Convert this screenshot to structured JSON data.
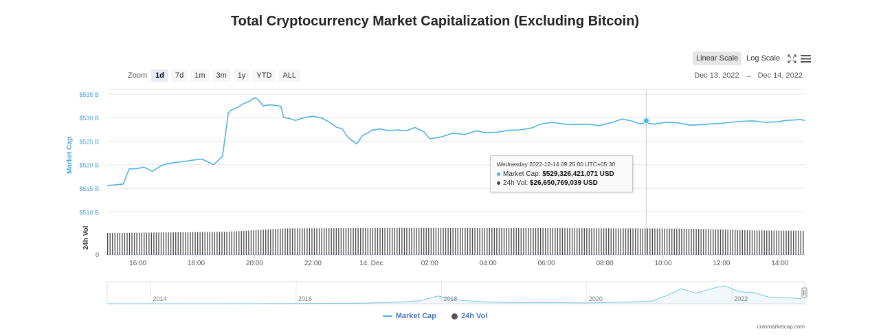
{
  "title": "Total Cryptocurrency Market Capitalization (Excluding Bitcoin)",
  "zoom": {
    "label": "Zoom",
    "options": [
      "1d",
      "7d",
      "1m",
      "3m",
      "1y",
      "YTD",
      "ALL"
    ],
    "active": "1d"
  },
  "scale": {
    "linear": "Linear Scale",
    "log": "Log Scale",
    "active": "Linear Scale"
  },
  "date_range": {
    "from": "Dec 13, 2022",
    "arrow": "→",
    "to": "Dec 14, 2022"
  },
  "tooltip": {
    "header": "Wednesday 2022-12-14 09:25:00 UTC+05:30",
    "market_cap_label": "Market Cap:",
    "market_cap_value": "$529,326,421,071 USD",
    "vol_label": "24h Vol:",
    "vol_value": "$26,650,769,039 USD"
  },
  "legend": {
    "market_cap": "Market Cap",
    "vol": "24h Vol"
  },
  "credit": "coinmarketcap.com",
  "colors": {
    "market_cap": "#4fb3e0",
    "vol": "#444444",
    "axis_blue": "#4fa5d8"
  },
  "chart_data": {
    "type": "line",
    "title": "Total Cryptocurrency Market Capitalization (Excluding Bitcoin)",
    "ylabel": "Market Cap",
    "y2label": "24h Vol",
    "ylim": [
      508,
      536
    ],
    "yticks": [
      "$535 B",
      "$530 B",
      "$525 B",
      "$520 B",
      "$515 B",
      "$510 B"
    ],
    "ytick_values": [
      535,
      530,
      525,
      520,
      515,
      510
    ],
    "vol_tick": "0",
    "xticks": [
      "16:00",
      "18:00",
      "20:00",
      "22:00",
      "14. Dec",
      "02:00",
      "04:00",
      "06:00",
      "08:00",
      "10:00",
      "12:00",
      "14:00"
    ],
    "xtick_hours": [
      16,
      18,
      20,
      22,
      24,
      26,
      28,
      30,
      32,
      34,
      36,
      38
    ],
    "x_range_hours": [
      14.95,
      38.85
    ],
    "series": [
      {
        "name": "Market Cap",
        "unit": "USD billions",
        "x_hours": [
          14.95,
          15.2,
          15.5,
          15.7,
          16.0,
          16.2,
          16.5,
          16.8,
          17.0,
          17.3,
          17.6,
          17.9,
          18.2,
          18.6,
          18.9,
          19.1,
          19.2,
          19.4,
          19.6,
          19.8,
          19.9,
          20.0,
          20.1,
          20.3,
          20.5,
          20.7,
          20.9,
          21.0,
          21.2,
          21.4,
          21.6,
          21.8,
          22.0,
          22.3,
          22.6,
          22.8,
          23.0,
          23.2,
          23.5,
          23.7,
          23.9,
          24.0,
          24.3,
          24.6,
          24.9,
          25.2,
          25.5,
          25.8,
          26.0,
          26.4,
          26.8,
          27.2,
          27.6,
          27.9,
          28.3,
          28.7,
          29.1,
          29.5,
          29.8,
          30.2,
          30.6,
          31.0,
          31.4,
          31.8,
          32.2,
          32.6,
          32.9,
          33.2,
          33.4,
          33.7,
          34.1,
          34.5,
          34.9,
          35.3,
          35.7,
          36.0,
          36.3,
          36.7,
          37.1,
          37.5,
          37.9,
          38.2,
          38.5,
          38.7,
          38.85
        ],
        "y": [
          515.6,
          515.7,
          515.9,
          519.1,
          519.2,
          519.5,
          518.6,
          519.8,
          520.2,
          520.5,
          520.7,
          521.0,
          521.2,
          520.0,
          521.8,
          531.0,
          531.6,
          532.1,
          532.9,
          533.4,
          533.8,
          534.2,
          533.9,
          532.5,
          532.7,
          532.6,
          532.4,
          530.0,
          529.8,
          529.4,
          529.8,
          530.1,
          530.3,
          529.9,
          528.9,
          528.0,
          527.6,
          525.8,
          524.4,
          526.2,
          526.8,
          527.3,
          527.6,
          527.2,
          527.4,
          527.2,
          527.9,
          527.0,
          525.5,
          525.9,
          526.7,
          526.4,
          527.2,
          526.8,
          526.9,
          527.3,
          527.4,
          527.8,
          528.6,
          529.0,
          528.6,
          528.5,
          528.6,
          528.3,
          528.9,
          529.7,
          529.3,
          528.7,
          528.9,
          528.6,
          529.0,
          528.9,
          528.4,
          528.5,
          528.7,
          528.8,
          529.0,
          529.2,
          529.3,
          529.0,
          529.1,
          529.4,
          529.5,
          529.6,
          529.4
        ]
      },
      {
        "name": "24h Vol",
        "unit": "relative",
        "x_hours": [
          14.95,
          19.0,
          21.0,
          25.0,
          30.0,
          34.0,
          35.5,
          37.0,
          38.85
        ],
        "y": [
          0.78,
          0.82,
          0.94,
          0.96,
          0.95,
          0.94,
          0.92,
          0.87,
          0.86
        ]
      }
    ],
    "highlight": {
      "x_hours": 33.42,
      "y": 529.33
    },
    "navigator": {
      "labels": [
        "2014",
        "2016",
        "2018",
        "2020",
        "2022"
      ],
      "label_years": [
        2014,
        2016,
        2018,
        2020,
        2022
      ],
      "x_range_years": [
        2013.4,
        2023.0
      ],
      "years": [
        2013.4,
        2015.0,
        2016.0,
        2016.8,
        2017.3,
        2017.7,
        2017.95,
        2018.1,
        2018.3,
        2018.7,
        2019.0,
        2019.5,
        2020.0,
        2020.5,
        2020.9,
        2021.1,
        2021.3,
        2021.5,
        2021.8,
        2021.9,
        2022.1,
        2022.3,
        2022.5,
        2022.8,
        2022.96
      ],
      "values": [
        0.0,
        0.0,
        0.01,
        0.02,
        0.06,
        0.15,
        0.4,
        0.28,
        0.16,
        0.08,
        0.05,
        0.06,
        0.04,
        0.08,
        0.14,
        0.42,
        0.78,
        0.55,
        0.86,
        0.93,
        0.62,
        0.58,
        0.35,
        0.3,
        0.26
      ]
    },
    "legend": [
      "Market Cap",
      "24h Vol"
    ],
    "legend_position": "bottom-center",
    "grid": true
  }
}
